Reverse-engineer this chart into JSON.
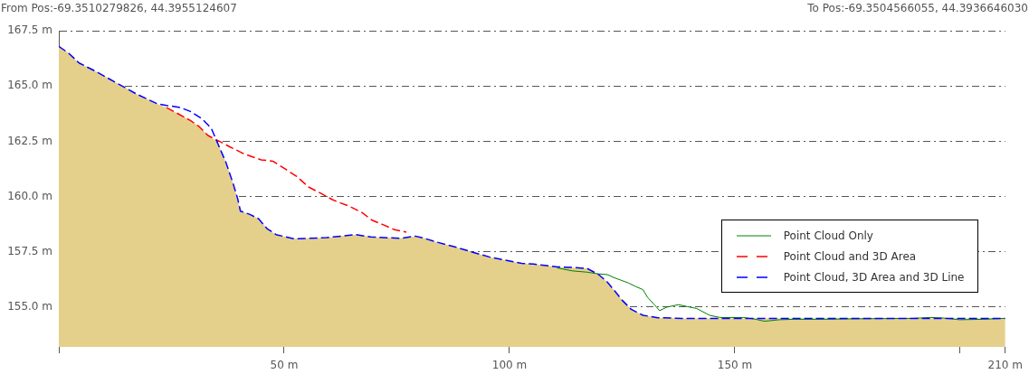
{
  "chart_data": {
    "type": "line",
    "annotations": [
      "From Pos:-69.3510279826, 44.3955124607",
      "To Pos:-69.3504566055, 44.3936646030"
    ],
    "series": [
      {
        "name": "Point Cloud Only",
        "color": "#008000",
        "line_style": "solid",
        "x": [
          110.6,
          113.9,
          117.2,
          119.8,
          121.7,
          123.1,
          126.4,
          128.0,
          129.6,
          130.6,
          132.0,
          133.3,
          134.9,
          137.5,
          139.5,
          141.5,
          144.4,
          146.7,
          151.9,
          154.6,
          156.6,
          159.9,
          163.2,
          169.7,
          176.3,
          182.8,
          189.4,
          193.3,
          196.0,
          199.9,
          205.2,
          209.8
        ],
        "values": [
          156.77,
          156.64,
          156.58,
          156.5,
          156.47,
          156.34,
          156.09,
          155.93,
          155.79,
          155.45,
          155.14,
          154.84,
          155.0,
          155.11,
          155.02,
          154.94,
          154.63,
          154.53,
          154.53,
          154.45,
          154.36,
          154.43,
          154.45,
          154.45,
          154.47,
          154.48,
          154.49,
          154.53,
          154.51,
          154.43,
          154.45,
          154.49
        ]
      },
      {
        "name": "Point Cloud and 3D Area",
        "color": "#ff0000",
        "line_style": "dashed",
        "x": [
          23.9,
          26.5,
          29.2,
          31.1,
          33.1,
          35.1,
          36.4,
          38.0,
          41.0,
          42.9,
          44.9,
          47.5,
          50.2,
          52.8,
          55.4,
          58.0,
          60.7,
          62.0,
          64.6,
          67.3,
          69.5,
          71.9,
          74.5,
          77.1
        ],
        "values": [
          164.02,
          163.74,
          163.44,
          163.17,
          162.76,
          162.55,
          162.42,
          162.24,
          161.94,
          161.8,
          161.66,
          161.6,
          161.25,
          160.91,
          160.43,
          160.16,
          159.86,
          159.75,
          159.55,
          159.27,
          158.93,
          158.73,
          158.5,
          158.39
        ]
      },
      {
        "name": "Point Cloud, 3D Area and 3D Line",
        "color": "#0000ff",
        "line_style": "dashed",
        "x": [
          0,
          2.2,
          4.5,
          8.2,
          12.7,
          17.3,
          21.9,
          23.9,
          26.9,
          29.2,
          31.8,
          33.8,
          35.1,
          37.1,
          38.7,
          39.7,
          40.3,
          42.3,
          44.3,
          46.2,
          48.2,
          52.1,
          55.4,
          59.4,
          65.9,
          69.2,
          75.8,
          79.1,
          81.1,
          83.7,
          88.3,
          92.2,
          95.5,
          98.8,
          102.7,
          105.3,
          110.6,
          113.9,
          117.2,
          119.8,
          121.7,
          123.1,
          125.0,
          127.0,
          129.6,
          132.9,
          138.2,
          150,
          170,
          190,
          210
        ],
        "values": [
          166.79,
          166.48,
          166.04,
          165.66,
          165.15,
          164.63,
          164.19,
          164.12,
          164.03,
          163.85,
          163.51,
          163.1,
          162.48,
          161.53,
          160.57,
          159.89,
          159.34,
          159.2,
          159.0,
          158.55,
          158.28,
          158.09,
          158.11,
          158.14,
          158.28,
          158.17,
          158.11,
          158.21,
          158.11,
          157.95,
          157.7,
          157.46,
          157.27,
          157.13,
          156.98,
          156.95,
          156.82,
          156.79,
          156.75,
          156.47,
          156.13,
          155.79,
          155.31,
          154.9,
          154.63,
          154.52,
          154.49,
          154.49,
          154.49,
          154.49,
          154.49
        ]
      },
      {
        "type": "area",
        "color": "#e4d08b",
        "x": [
          0,
          2.2,
          4.5,
          8.2,
          12.7,
          17.3,
          21.9,
          23.9,
          26.5,
          29.2,
          31.1,
          33.1,
          35.1,
          37.1,
          38.7,
          39.7,
          40.3,
          42.3,
          44.3,
          46.2,
          48.2,
          52.1,
          55.4,
          59.4,
          65.9,
          69.2,
          75.8,
          79.1,
          81.1,
          83.7,
          88.3,
          92.2,
          95.5,
          98.8,
          102.7,
          105.3,
          110.6,
          113.9,
          117.2,
          119.8,
          121.7,
          123.1,
          125.0,
          127.0,
          129.6,
          132.9,
          138.2,
          150,
          170,
          190,
          210
        ],
        "values": [
          166.79,
          166.48,
          166.04,
          165.66,
          165.15,
          164.63,
          164.19,
          164.02,
          163.74,
          163.44,
          163.17,
          162.76,
          162.5,
          161.53,
          160.57,
          159.89,
          159.34,
          159.2,
          159.0,
          158.55,
          158.28,
          158.09,
          158.11,
          158.14,
          158.28,
          158.17,
          158.11,
          158.21,
          158.11,
          157.95,
          157.7,
          157.46,
          157.27,
          157.13,
          156.98,
          156.95,
          156.82,
          156.79,
          156.75,
          156.47,
          156.13,
          155.79,
          155.31,
          154.9,
          154.63,
          154.52,
          154.49,
          154.49,
          154.49,
          154.49,
          154.49
        ]
      }
    ],
    "xlim": [
      0,
      210
    ],
    "xticks": [
      {
        "value": 0,
        "label": null
      },
      {
        "value": 50,
        "label": "50 m"
      },
      {
        "value": 100,
        "label": "100 m"
      },
      {
        "value": 150,
        "label": "150 m"
      },
      {
        "value": 200,
        "label": null
      },
      {
        "value": 210,
        "label": "210 m"
      }
    ],
    "ylim": [
      153.2,
      167.5
    ],
    "yticks": [
      {
        "value": 155,
        "label": "155.0 m"
      },
      {
        "value": 157.5,
        "label": "157.5 m"
      },
      {
        "value": 160,
        "label": "160.0 m"
      },
      {
        "value": 162.5,
        "label": "162.5 m"
      },
      {
        "value": 165,
        "label": "165.0 m"
      },
      {
        "value": 167.5,
        "label": "167.5 m"
      }
    ],
    "grid": "y",
    "legend": "bottom right"
  }
}
